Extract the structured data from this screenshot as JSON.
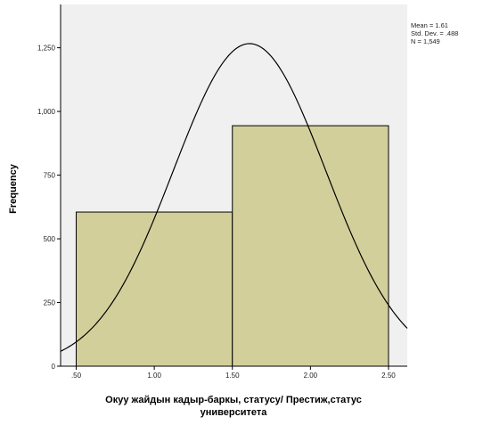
{
  "chart_data": {
    "type": "bar",
    "subtype": "histogram",
    "bins": [
      {
        "from": 0.5,
        "to": 1.5,
        "value": 605
      },
      {
        "from": 1.5,
        "to": 2.5,
        "value": 944
      }
    ],
    "normal_curve": {
      "mean": 1.61,
      "std": 0.488,
      "n": 1549,
      "bin_width": 1.0
    },
    "xlim": [
      0.4,
      2.62
    ],
    "ylim": [
      0,
      1420
    ],
    "x_ticks": [
      ".50",
      "1.00",
      "1.50",
      "2.00",
      "2.50"
    ],
    "x_tick_values": [
      0.5,
      1.0,
      1.5,
      2.0,
      2.5
    ],
    "y_ticks": [
      "0",
      "250",
      "500",
      "750",
      "1,000",
      "1,250"
    ],
    "y_tick_values": [
      0,
      250,
      500,
      750,
      1000,
      1250
    ],
    "ylabel": "Frequency",
    "xlabel_line1": "Окуу жайдын кадыр-баркы, статусу/ Престиж,статус",
    "xlabel_line2": "университета",
    "stats": [
      "Mean = 1.61",
      "Std. Dev. = .488",
      "N = 1,549"
    ],
    "colors": {
      "plot_bg": "#f0f0f0",
      "bar_fill": "#d3cf9b",
      "bar_stroke": "#000000",
      "curve": "#000000"
    }
  }
}
